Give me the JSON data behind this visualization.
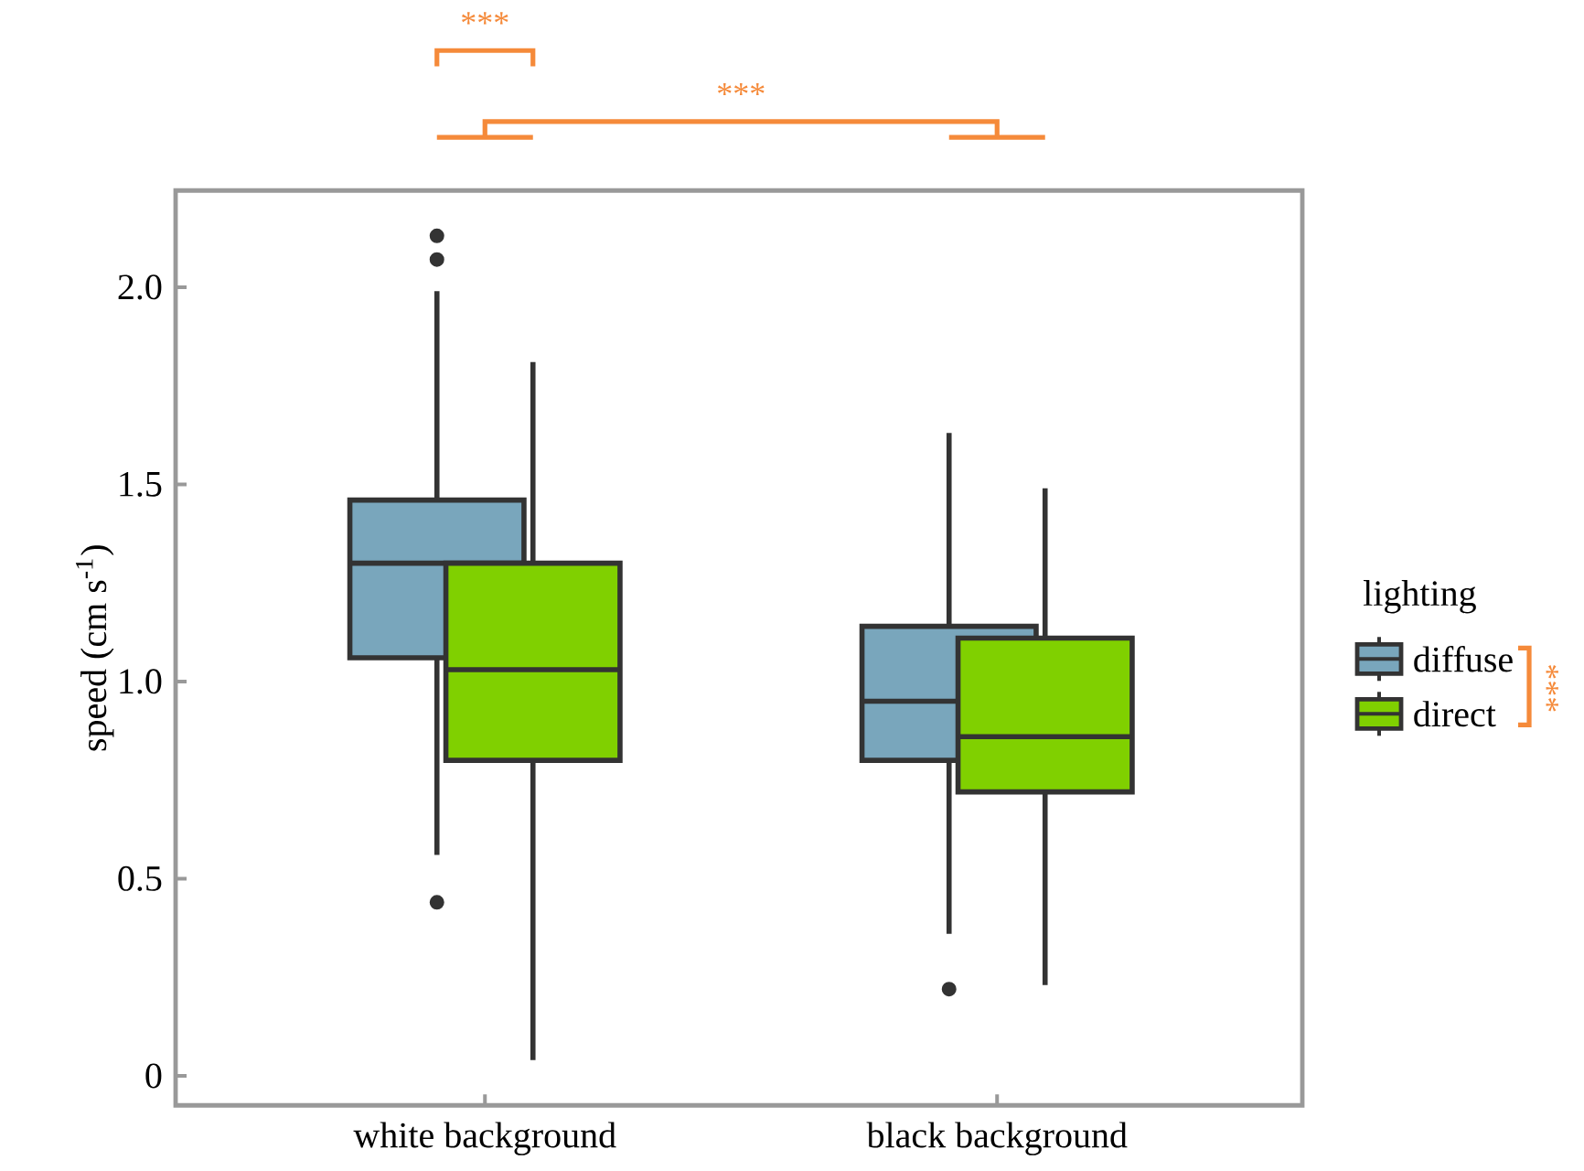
{
  "chart_data": {
    "type": "box",
    "ylabel": "speed (cm s$^{-1}$)",
    "categories": [
      "white background",
      "black background"
    ],
    "legend_title": "lighting",
    "legend": "right",
    "grid": false,
    "marker": "circle",
    "ylim": [
      -0.075,
      2.245
    ],
    "yticks": [
      {
        "value": 0,
        "label": "0"
      },
      {
        "value": 0.5,
        "label": "0.5"
      },
      {
        "value": 1,
        "label": "1.0"
      },
      {
        "value": 1.5,
        "label": "1.5"
      },
      {
        "value": 2,
        "label": "2.0"
      }
    ],
    "series": [
      {
        "name": "diffuse",
        "color": "#79a6bc",
        "boxes": [
          {
            "low": 0.56,
            "q1": 1.06,
            "median": 1.3,
            "q3": 1.46,
            "high": 1.99,
            "outliers": [
              2.13,
              2.07,
              0.44
            ]
          },
          {
            "low": 0.36,
            "q1": 0.8,
            "median": 0.95,
            "q3": 1.14,
            "high": 1.63,
            "outliers": [
              0.22
            ]
          }
        ]
      },
      {
        "name": "direct",
        "color": "#80d000",
        "boxes": [
          {
            "low": 0.04,
            "q1": 0.8,
            "median": 1.03,
            "q3": 1.3,
            "high": 1.81
          },
          {
            "low": 0.23,
            "q1": 0.72,
            "median": 0.86,
            "q3": 1.11,
            "high": 1.49
          }
        ]
      }
    ],
    "annotations": [
      "***",
      "***",
      "***"
    ]
  }
}
